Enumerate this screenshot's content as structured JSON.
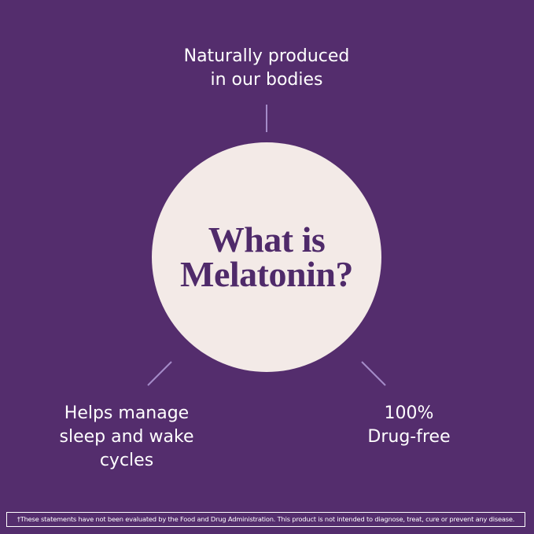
{
  "center": {
    "line1": "What is",
    "line2": "Melatonin?"
  },
  "facts": {
    "top": {
      "lines": [
        "Naturally produced",
        "in our bodies"
      ]
    },
    "left": {
      "lines": [
        "Helps manage",
        "sleep and wake",
        "cycles"
      ]
    },
    "right": {
      "lines": [
        "100%",
        "Drug-free"
      ]
    }
  },
  "footer": {
    "disclaimer": "†These statements have not been evaluated by the Food and Drug Administration. This product is not intended to diagnose, treat, cure or prevent any disease."
  },
  "colors": {
    "background": "#542D6D",
    "circle": "#F3EAE7",
    "title_text": "#4F2A6A",
    "connector": "#A48BC8"
  }
}
